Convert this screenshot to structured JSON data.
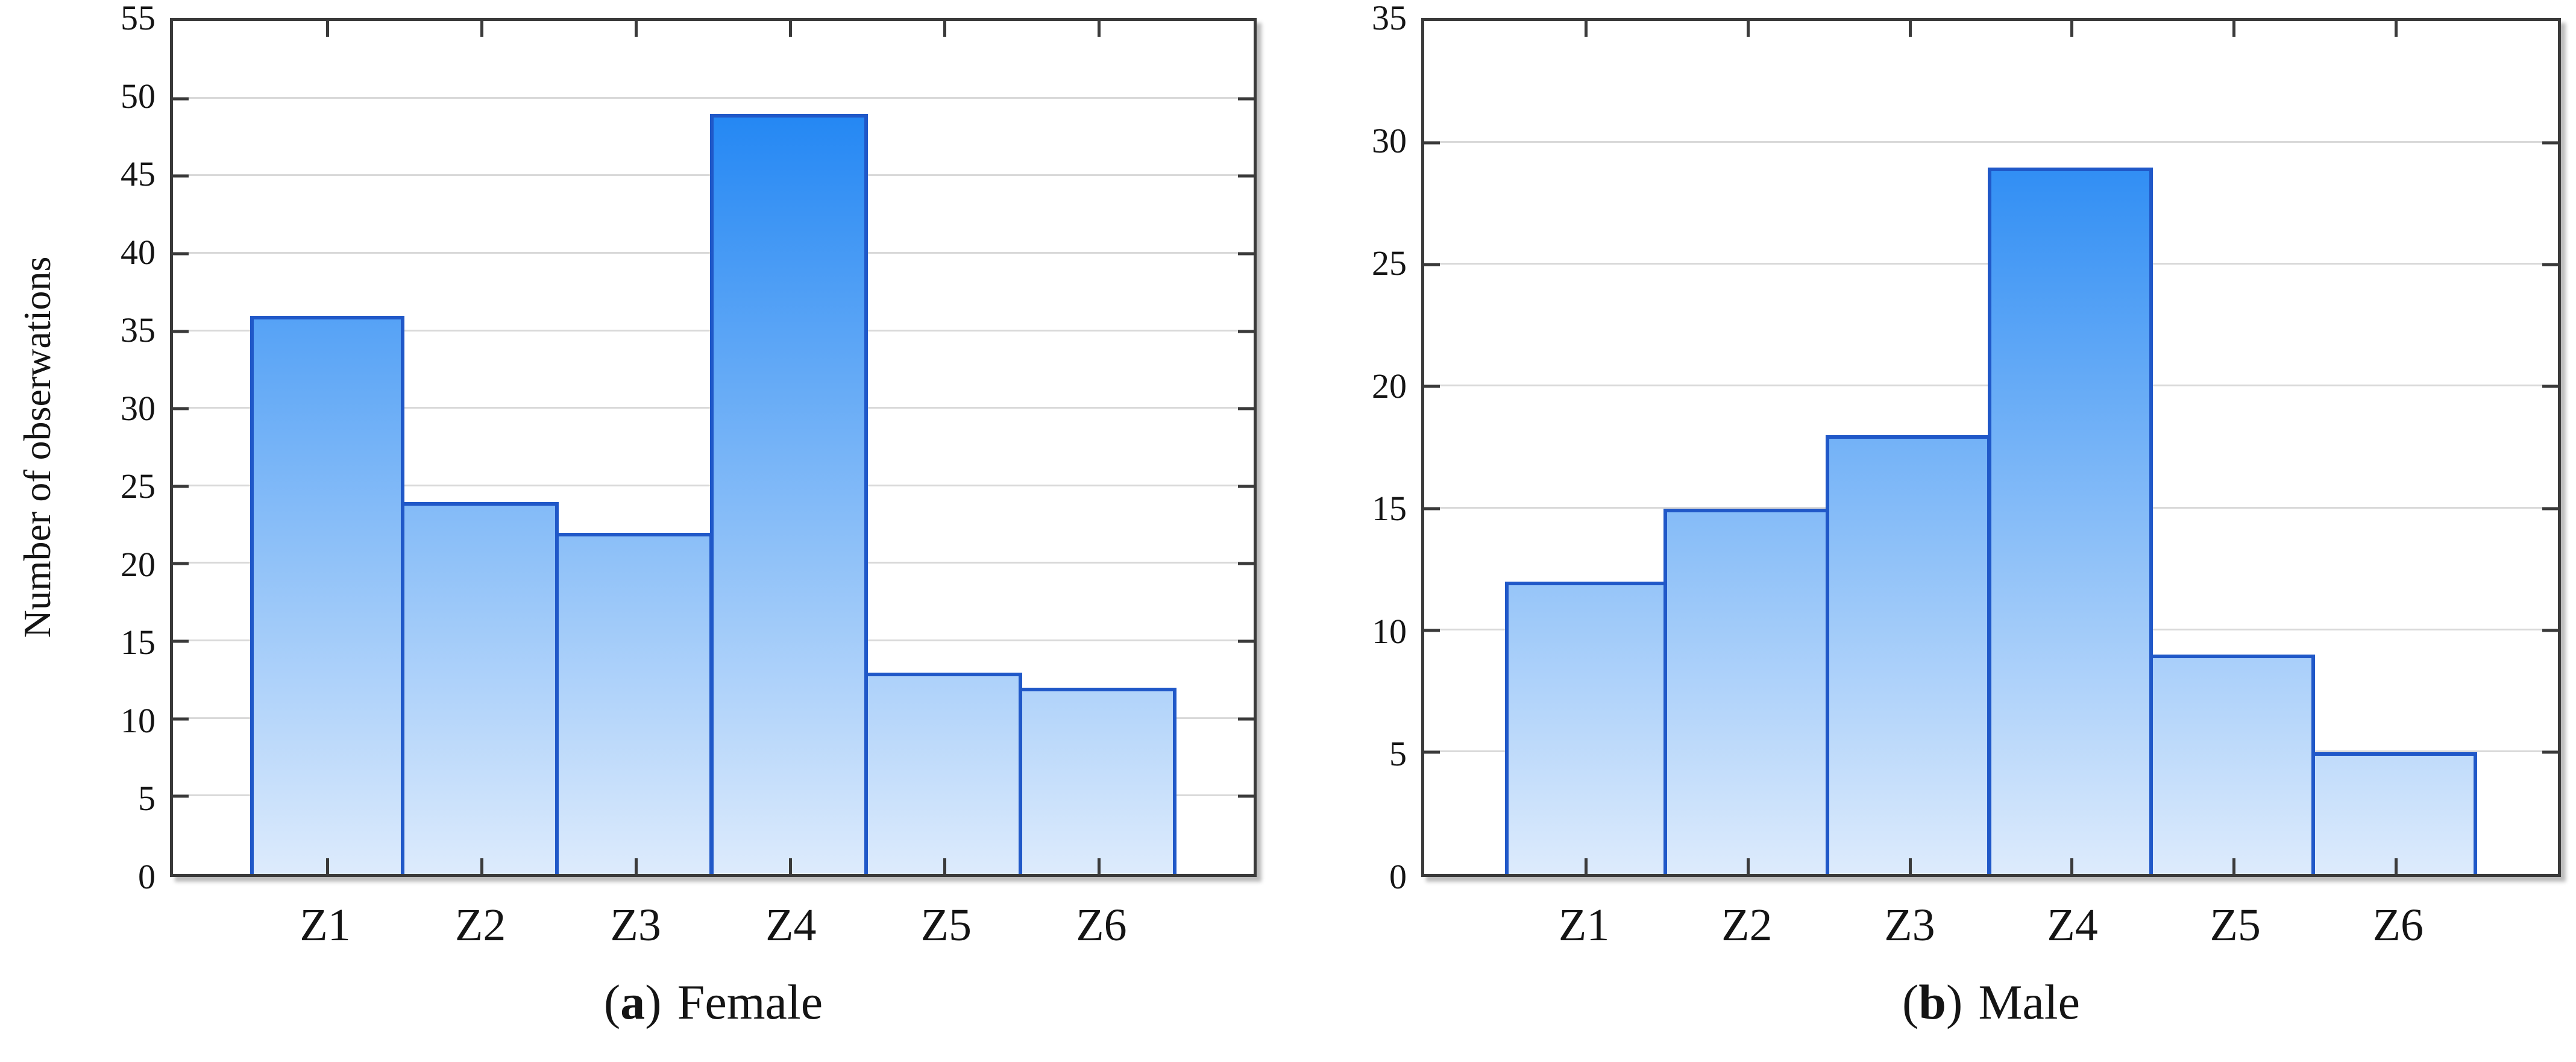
{
  "style": {
    "bar_fill_top": "#0d7bf2",
    "bar_fill_bottom": "#ddebfc",
    "bar_border": "#2058c8",
    "grid_color": "#d9d9d9",
    "axis_color": "#3a3a3a",
    "text_color": "#141414"
  },
  "y_axis_title": "Number of obserwations",
  "captions": [
    {
      "open": "(",
      "letter": "a",
      "close": ")",
      "label": "Female"
    },
    {
      "open": "(",
      "letter": "b",
      "close": ")",
      "label": "Male"
    }
  ],
  "chart_data": [
    {
      "type": "bar",
      "title": "(a) Female",
      "categories": [
        "Z1",
        "Z2",
        "Z3",
        "Z4",
        "Z5",
        "Z6"
      ],
      "values": [
        36,
        24,
        22,
        49,
        13,
        12
      ],
      "xlabel": "",
      "ylabel": "Number of obserwations",
      "ylim": [
        0,
        55
      ],
      "ytick_step": 5,
      "grid": "horizontal",
      "legend": "none",
      "bar_style": "contiguous-histogram, vertical blue gradient light at 0 to bright at top"
    },
    {
      "type": "bar",
      "title": "(b) Male",
      "categories": [
        "Z1",
        "Z2",
        "Z3",
        "Z4",
        "Z5",
        "Z6"
      ],
      "values": [
        12,
        15,
        18,
        29,
        9,
        5
      ],
      "xlabel": "",
      "ylabel": "",
      "ylim": [
        0,
        35
      ],
      "ytick_step": 5,
      "grid": "horizontal",
      "legend": "none",
      "bar_style": "contiguous-histogram, vertical blue gradient light at 0 to bright at top"
    }
  ]
}
